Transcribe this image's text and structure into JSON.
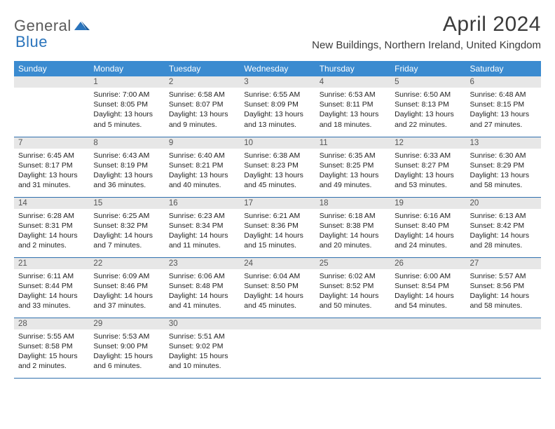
{
  "brand": {
    "word1": "General",
    "word2": "Blue"
  },
  "title": "April 2024",
  "location": "New Buildings, Northern Ireland, United Kingdom",
  "colors": {
    "header_bg": "#3b8bd0",
    "header_text": "#ffffff",
    "cell_border": "#2f6fad",
    "daynum_bg": "#e7e7e7",
    "brand_gray": "#5a5a5a",
    "brand_blue": "#2a74bc"
  },
  "weekdays": [
    "Sunday",
    "Monday",
    "Tuesday",
    "Wednesday",
    "Thursday",
    "Friday",
    "Saturday"
  ],
  "weeks": [
    [
      null,
      {
        "n": "1",
        "sr": "7:00 AM",
        "ss": "8:05 PM",
        "dl": "13 hours and 5 minutes."
      },
      {
        "n": "2",
        "sr": "6:58 AM",
        "ss": "8:07 PM",
        "dl": "13 hours and 9 minutes."
      },
      {
        "n": "3",
        "sr": "6:55 AM",
        "ss": "8:09 PM",
        "dl": "13 hours and 13 minutes."
      },
      {
        "n": "4",
        "sr": "6:53 AM",
        "ss": "8:11 PM",
        "dl": "13 hours and 18 minutes."
      },
      {
        "n": "5",
        "sr": "6:50 AM",
        "ss": "8:13 PM",
        "dl": "13 hours and 22 minutes."
      },
      {
        "n": "6",
        "sr": "6:48 AM",
        "ss": "8:15 PM",
        "dl": "13 hours and 27 minutes."
      }
    ],
    [
      {
        "n": "7",
        "sr": "6:45 AM",
        "ss": "8:17 PM",
        "dl": "13 hours and 31 minutes."
      },
      {
        "n": "8",
        "sr": "6:43 AM",
        "ss": "8:19 PM",
        "dl": "13 hours and 36 minutes."
      },
      {
        "n": "9",
        "sr": "6:40 AM",
        "ss": "8:21 PM",
        "dl": "13 hours and 40 minutes."
      },
      {
        "n": "10",
        "sr": "6:38 AM",
        "ss": "8:23 PM",
        "dl": "13 hours and 45 minutes."
      },
      {
        "n": "11",
        "sr": "6:35 AM",
        "ss": "8:25 PM",
        "dl": "13 hours and 49 minutes."
      },
      {
        "n": "12",
        "sr": "6:33 AM",
        "ss": "8:27 PM",
        "dl": "13 hours and 53 minutes."
      },
      {
        "n": "13",
        "sr": "6:30 AM",
        "ss": "8:29 PM",
        "dl": "13 hours and 58 minutes."
      }
    ],
    [
      {
        "n": "14",
        "sr": "6:28 AM",
        "ss": "8:31 PM",
        "dl": "14 hours and 2 minutes."
      },
      {
        "n": "15",
        "sr": "6:25 AM",
        "ss": "8:32 PM",
        "dl": "14 hours and 7 minutes."
      },
      {
        "n": "16",
        "sr": "6:23 AM",
        "ss": "8:34 PM",
        "dl": "14 hours and 11 minutes."
      },
      {
        "n": "17",
        "sr": "6:21 AM",
        "ss": "8:36 PM",
        "dl": "14 hours and 15 minutes."
      },
      {
        "n": "18",
        "sr": "6:18 AM",
        "ss": "8:38 PM",
        "dl": "14 hours and 20 minutes."
      },
      {
        "n": "19",
        "sr": "6:16 AM",
        "ss": "8:40 PM",
        "dl": "14 hours and 24 minutes."
      },
      {
        "n": "20",
        "sr": "6:13 AM",
        "ss": "8:42 PM",
        "dl": "14 hours and 28 minutes."
      }
    ],
    [
      {
        "n": "21",
        "sr": "6:11 AM",
        "ss": "8:44 PM",
        "dl": "14 hours and 33 minutes."
      },
      {
        "n": "22",
        "sr": "6:09 AM",
        "ss": "8:46 PM",
        "dl": "14 hours and 37 minutes."
      },
      {
        "n": "23",
        "sr": "6:06 AM",
        "ss": "8:48 PM",
        "dl": "14 hours and 41 minutes."
      },
      {
        "n": "24",
        "sr": "6:04 AM",
        "ss": "8:50 PM",
        "dl": "14 hours and 45 minutes."
      },
      {
        "n": "25",
        "sr": "6:02 AM",
        "ss": "8:52 PM",
        "dl": "14 hours and 50 minutes."
      },
      {
        "n": "26",
        "sr": "6:00 AM",
        "ss": "8:54 PM",
        "dl": "14 hours and 54 minutes."
      },
      {
        "n": "27",
        "sr": "5:57 AM",
        "ss": "8:56 PM",
        "dl": "14 hours and 58 minutes."
      }
    ],
    [
      {
        "n": "28",
        "sr": "5:55 AM",
        "ss": "8:58 PM",
        "dl": "15 hours and 2 minutes."
      },
      {
        "n": "29",
        "sr": "5:53 AM",
        "ss": "9:00 PM",
        "dl": "15 hours and 6 minutes."
      },
      {
        "n": "30",
        "sr": "5:51 AM",
        "ss": "9:02 PM",
        "dl": "15 hours and 10 minutes."
      },
      null,
      null,
      null,
      null
    ]
  ],
  "labels": {
    "sunrise": "Sunrise:",
    "sunset": "Sunset:",
    "daylight": "Daylight:"
  }
}
